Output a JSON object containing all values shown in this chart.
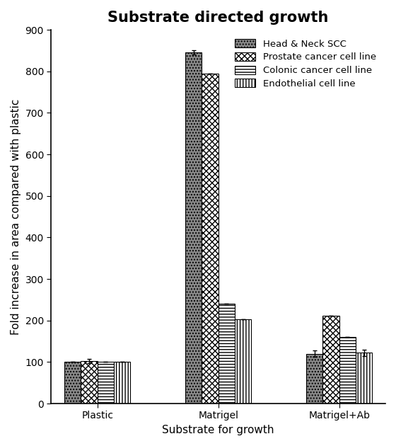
{
  "title": "Substrate directed growth",
  "xlabel": "Substrate for growth",
  "ylabel": "Fold increase in area compared with plastic",
  "categories": [
    "Plastic",
    "Matrigel",
    "Matrigel+Ab"
  ],
  "series": {
    "Head & Neck SCC": [
      100,
      845,
      120
    ],
    "Prostate cancer cell line": [
      103,
      795,
      212
    ],
    "Colonic cancer cell line": [
      100,
      240,
      160
    ],
    "Endothelial cell line": [
      100,
      203,
      122
    ]
  },
  "errors": {
    "Head & Neck SCC": [
      0,
      5,
      8
    ],
    "Prostate cancer cell line": [
      5,
      0,
      0
    ],
    "Colonic cancer cell line": [
      0,
      0,
      0
    ],
    "Endothelial cell line": [
      0,
      0,
      7
    ]
  },
  "ylim": [
    0,
    900
  ],
  "yticks": [
    0,
    100,
    200,
    300,
    400,
    500,
    600,
    700,
    800,
    900
  ],
  "bar_width": 0.15,
  "background_color": "#ffffff",
  "title_fontsize": 15,
  "axis_fontsize": 11,
  "tick_fontsize": 10,
  "legend_fontsize": 9.5
}
